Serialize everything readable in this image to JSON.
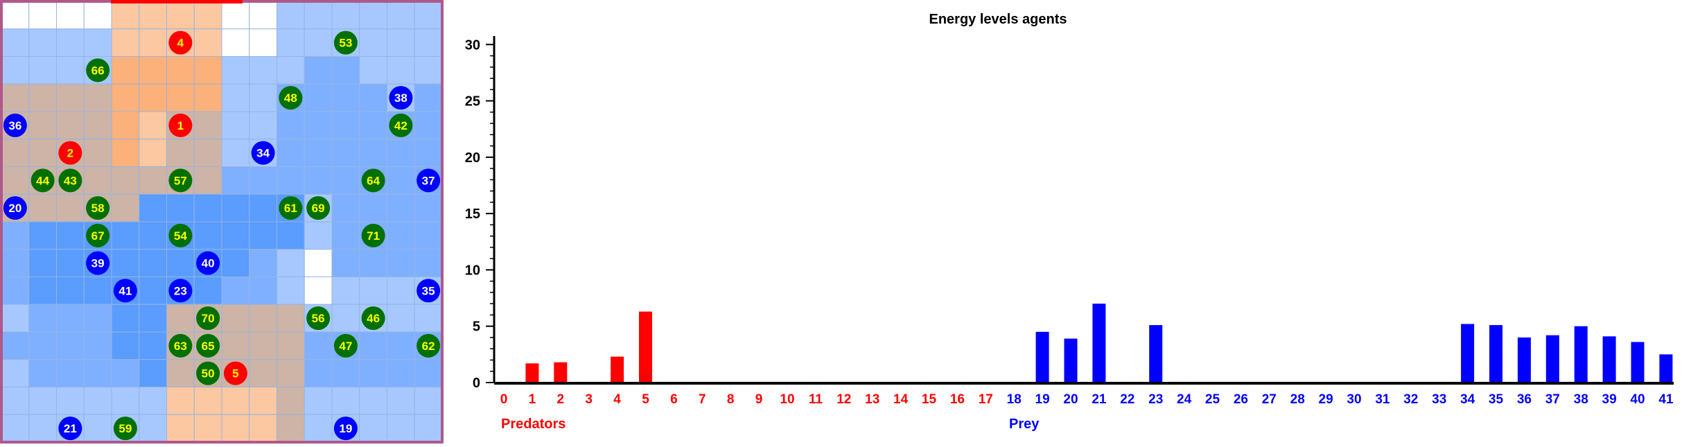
{
  "grid": {
    "cols": 16,
    "rows": 16,
    "legend_colors": {
      "white": "#ffffff",
      "light_blue": "#a6c8ff",
      "mid_blue": "#7fb0ff",
      "deep_blue": "#5a9cff",
      "peach": "#fcc8a2",
      "orange": "#fcb07a",
      "tan": "#cdb4a6",
      "border": "#b0588c"
    },
    "cell_colors": [
      [
        "white",
        "white",
        "white",
        "white",
        "peach",
        "peach",
        "peach",
        "peach",
        "white",
        "white",
        "light_blue",
        "light_blue",
        "light_blue",
        "light_blue",
        "light_blue",
        "light_blue"
      ],
      [
        "light_blue",
        "light_blue",
        "light_blue",
        "light_blue",
        "peach",
        "peach",
        "peach",
        "peach",
        "white",
        "white",
        "light_blue",
        "light_blue",
        "light_blue",
        "light_blue",
        "light_blue",
        "light_blue"
      ],
      [
        "light_blue",
        "light_blue",
        "light_blue",
        "light_blue",
        "orange",
        "orange",
        "orange",
        "orange",
        "light_blue",
        "light_blue",
        "light_blue",
        "mid_blue",
        "mid_blue",
        "light_blue",
        "light_blue",
        "light_blue"
      ],
      [
        "tan",
        "tan",
        "tan",
        "tan",
        "orange",
        "orange",
        "orange",
        "orange",
        "light_blue",
        "light_blue",
        "mid_blue",
        "mid_blue",
        "mid_blue",
        "mid_blue",
        "light_blue",
        "mid_blue"
      ],
      [
        "tan",
        "tan",
        "tan",
        "tan",
        "orange",
        "peach",
        "tan",
        "tan",
        "light_blue",
        "light_blue",
        "mid_blue",
        "mid_blue",
        "mid_blue",
        "mid_blue",
        "mid_blue",
        "mid_blue"
      ],
      [
        "tan",
        "tan",
        "tan",
        "tan",
        "orange",
        "peach",
        "tan",
        "tan",
        "light_blue",
        "light_blue",
        "mid_blue",
        "mid_blue",
        "mid_blue",
        "mid_blue",
        "mid_blue",
        "mid_blue"
      ],
      [
        "tan",
        "tan",
        "tan",
        "tan",
        "tan",
        "tan",
        "tan",
        "tan",
        "mid_blue",
        "mid_blue",
        "mid_blue",
        "mid_blue",
        "mid_blue",
        "mid_blue",
        "mid_blue",
        "mid_blue"
      ],
      [
        "tan",
        "tan",
        "tan",
        "tan",
        "tan",
        "deep_blue",
        "deep_blue",
        "deep_blue",
        "deep_blue",
        "deep_blue",
        "deep_blue",
        "light_blue",
        "mid_blue",
        "mid_blue",
        "mid_blue",
        "mid_blue"
      ],
      [
        "mid_blue",
        "deep_blue",
        "deep_blue",
        "deep_blue",
        "deep_blue",
        "deep_blue",
        "deep_blue",
        "deep_blue",
        "deep_blue",
        "deep_blue",
        "deep_blue",
        "light_blue",
        "mid_blue",
        "mid_blue",
        "mid_blue",
        "mid_blue"
      ],
      [
        "mid_blue",
        "deep_blue",
        "deep_blue",
        "deep_blue",
        "deep_blue",
        "deep_blue",
        "deep_blue",
        "deep_blue",
        "deep_blue",
        "mid_blue",
        "light_blue",
        "white",
        "mid_blue",
        "mid_blue",
        "mid_blue",
        "mid_blue"
      ],
      [
        "mid_blue",
        "deep_blue",
        "deep_blue",
        "deep_blue",
        "deep_blue",
        "deep_blue",
        "deep_blue",
        "deep_blue",
        "mid_blue",
        "mid_blue",
        "light_blue",
        "white",
        "light_blue",
        "light_blue",
        "light_blue",
        "light_blue"
      ],
      [
        "light_blue",
        "mid_blue",
        "mid_blue",
        "mid_blue",
        "deep_blue",
        "deep_blue",
        "tan",
        "tan",
        "tan",
        "tan",
        "tan",
        "light_blue",
        "light_blue",
        "light_blue",
        "light_blue",
        "light_blue"
      ],
      [
        "mid_blue",
        "mid_blue",
        "mid_blue",
        "mid_blue",
        "deep_blue",
        "deep_blue",
        "tan",
        "tan",
        "tan",
        "tan",
        "tan",
        "mid_blue",
        "mid_blue",
        "mid_blue",
        "mid_blue",
        "mid_blue"
      ],
      [
        "light_blue",
        "mid_blue",
        "mid_blue",
        "mid_blue",
        "mid_blue",
        "deep_blue",
        "tan",
        "tan",
        "tan",
        "tan",
        "tan",
        "mid_blue",
        "mid_blue",
        "mid_blue",
        "mid_blue",
        "mid_blue"
      ],
      [
        "light_blue",
        "light_blue",
        "light_blue",
        "light_blue",
        "light_blue",
        "light_blue",
        "peach",
        "peach",
        "peach",
        "peach",
        "tan",
        "light_blue",
        "light_blue",
        "light_blue",
        "light_blue",
        "light_blue"
      ],
      [
        "light_blue",
        "light_blue",
        "light_blue",
        "light_blue",
        "light_blue",
        "light_blue",
        "peach",
        "peach",
        "peach",
        "peach",
        "tan",
        "light_blue",
        "light_blue",
        "light_blue",
        "light_blue",
        "light_blue"
      ]
    ],
    "agent_colors": {
      "predator": "#ff0000",
      "prey": "#0000ff",
      "food": "#007000",
      "predator_text": "#ffff00",
      "prey_text": "#ffffff",
      "food_text": "#ffff00"
    },
    "agents": [
      {
        "label": "4",
        "kind": "predator",
        "col": 6,
        "row": 1
      },
      {
        "label": "1",
        "kind": "predator",
        "col": 6,
        "row": 4
      },
      {
        "label": "2",
        "kind": "predator",
        "col": 2,
        "row": 5
      },
      {
        "label": "5",
        "kind": "predator",
        "col": 8,
        "row": 13
      },
      {
        "label": "53",
        "kind": "food",
        "col": 12,
        "row": 1
      },
      {
        "label": "66",
        "kind": "food",
        "col": 3,
        "row": 2
      },
      {
        "label": "48",
        "kind": "food",
        "col": 10,
        "row": 3
      },
      {
        "label": "38",
        "kind": "prey",
        "col": 14,
        "row": 3
      },
      {
        "label": "36",
        "kind": "prey",
        "col": 0,
        "row": 4
      },
      {
        "label": "42",
        "kind": "food",
        "col": 14,
        "row": 4
      },
      {
        "label": "34",
        "kind": "prey",
        "col": 9,
        "row": 5
      },
      {
        "label": "44",
        "kind": "food",
        "col": 1,
        "row": 6
      },
      {
        "label": "43",
        "kind": "food",
        "col": 2,
        "row": 6
      },
      {
        "label": "57",
        "kind": "food",
        "col": 6,
        "row": 6
      },
      {
        "label": "64",
        "kind": "food",
        "col": 13,
        "row": 6
      },
      {
        "label": "37",
        "kind": "prey",
        "col": 15,
        "row": 6
      },
      {
        "label": "20",
        "kind": "prey",
        "col": 0,
        "row": 7
      },
      {
        "label": "58",
        "kind": "food",
        "col": 3,
        "row": 7
      },
      {
        "label": "61",
        "kind": "food",
        "col": 10,
        "row": 7
      },
      {
        "label": "69",
        "kind": "food",
        "col": 11,
        "row": 7
      },
      {
        "label": "67",
        "kind": "food",
        "col": 3,
        "row": 8
      },
      {
        "label": "54",
        "kind": "food",
        "col": 6,
        "row": 8
      },
      {
        "label": "71",
        "kind": "food",
        "col": 13,
        "row": 8
      },
      {
        "label": "39",
        "kind": "prey",
        "col": 3,
        "row": 9
      },
      {
        "label": "40",
        "kind": "prey",
        "col": 7,
        "row": 9
      },
      {
        "label": "41",
        "kind": "prey",
        "col": 4,
        "row": 10
      },
      {
        "label": "23",
        "kind": "prey",
        "col": 6,
        "row": 10
      },
      {
        "label": "35",
        "kind": "prey",
        "col": 15,
        "row": 10
      },
      {
        "label": "70",
        "kind": "food",
        "col": 7,
        "row": 11
      },
      {
        "label": "56",
        "kind": "food",
        "col": 11,
        "row": 11
      },
      {
        "label": "46",
        "kind": "food",
        "col": 13,
        "row": 11
      },
      {
        "label": "63",
        "kind": "food",
        "col": 6,
        "row": 12
      },
      {
        "label": "65",
        "kind": "food",
        "col": 7,
        "row": 12
      },
      {
        "label": "47",
        "kind": "food",
        "col": 12,
        "row": 12
      },
      {
        "label": "62",
        "kind": "food",
        "col": 15,
        "row": 12
      },
      {
        "label": "50",
        "kind": "food",
        "col": 7,
        "row": 13
      },
      {
        "label": "21",
        "kind": "prey",
        "col": 2,
        "row": 15
      },
      {
        "label": "59",
        "kind": "food",
        "col": 4,
        "row": 15
      },
      {
        "label": "19",
        "kind": "prey",
        "col": 12,
        "row": 15
      }
    ]
  },
  "chart_data": {
    "type": "bar",
    "title": "Energy levels agents",
    "categories": [
      "0",
      "1",
      "2",
      "3",
      "4",
      "5",
      "6",
      "7",
      "8",
      "9",
      "10",
      "11",
      "12",
      "13",
      "14",
      "15",
      "16",
      "17",
      "18",
      "19",
      "20",
      "21",
      "22",
      "23",
      "24",
      "25",
      "26",
      "27",
      "28",
      "29",
      "30",
      "31",
      "32",
      "33",
      "34",
      "35",
      "36",
      "37",
      "38",
      "39",
      "40",
      "41"
    ],
    "series": [
      {
        "name": "Predators",
        "color": "#ff0000",
        "values": [
          0,
          1.7,
          1.8,
          0,
          2.3,
          6.3,
          0,
          0,
          0,
          0,
          0,
          0,
          0,
          0,
          0,
          0,
          0,
          0,
          0,
          0,
          0,
          0,
          0,
          0,
          0,
          0,
          0,
          0,
          0,
          0,
          0,
          0,
          0,
          0,
          0,
          0,
          0,
          0,
          0,
          0,
          0,
          0
        ]
      },
      {
        "name": "Prey",
        "color": "#0000ff",
        "values": [
          0,
          0,
          0,
          0,
          0,
          0,
          0,
          0,
          0,
          0,
          0,
          0,
          0,
          0,
          0,
          0,
          0,
          0,
          0,
          4.5,
          3.9,
          7.0,
          0,
          5.1,
          0,
          0,
          0,
          0,
          0,
          0,
          0,
          0,
          0,
          0,
          5.2,
          5.1,
          4.0,
          4.2,
          5.0,
          4.1,
          3.6,
          2.5
        ]
      }
    ],
    "predator_categories": [
      "0",
      "1",
      "2",
      "3",
      "4",
      "5",
      "6",
      "7",
      "8",
      "9",
      "10",
      "11",
      "12",
      "13",
      "14",
      "15",
      "16",
      "17"
    ],
    "prey_categories": [
      "18",
      "19",
      "20",
      "21",
      "22",
      "23",
      "24",
      "25",
      "26",
      "27",
      "28",
      "29",
      "30",
      "31",
      "32",
      "33",
      "34",
      "35",
      "36",
      "37",
      "38",
      "39",
      "40",
      "41"
    ],
    "yticks": [
      0,
      5,
      10,
      15,
      20,
      25,
      30
    ],
    "ylim": [
      0,
      31
    ],
    "xlabel": "",
    "ylabel": "",
    "grid": false
  }
}
